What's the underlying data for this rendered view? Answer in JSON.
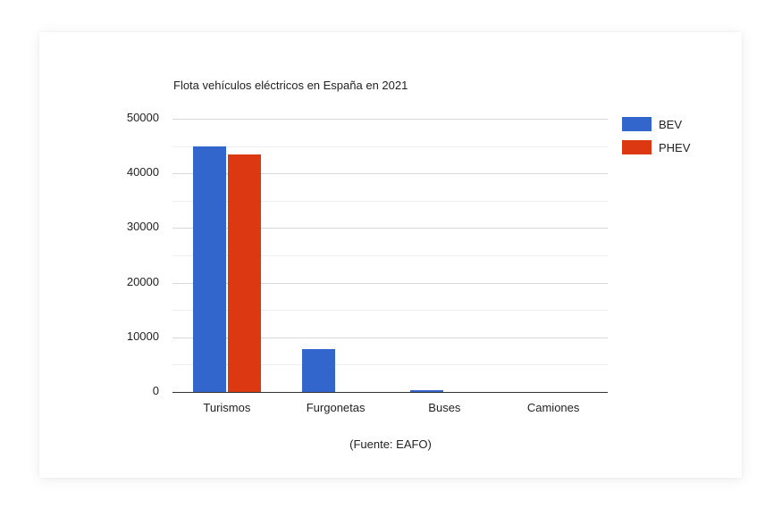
{
  "chart_data": {
    "type": "bar",
    "title": "Flota vehículos eléctricos en España en 2021",
    "xlabel": "",
    "ylabel": "",
    "categories": [
      "Turismos",
      "Furgonetas",
      "Buses",
      "Camiones"
    ],
    "series": [
      {
        "name": "BEV",
        "color": "#3366cc",
        "values": [
          45000,
          7800,
          300,
          30
        ]
      },
      {
        "name": "PHEV",
        "color": "#dc3912",
        "values": [
          43500,
          50,
          0,
          0
        ]
      }
    ],
    "ylim": [
      0,
      50000
    ],
    "yticks": [
      "0",
      "10000",
      "20000",
      "30000",
      "40000",
      "50000"
    ],
    "grid": true,
    "legend_position": "right",
    "annotation": "(Fuente: EAFO)"
  },
  "legend": {
    "items": [
      {
        "label": "BEV",
        "color": "#3366cc"
      },
      {
        "label": "PHEV",
        "color": "#dc3912"
      }
    ]
  }
}
